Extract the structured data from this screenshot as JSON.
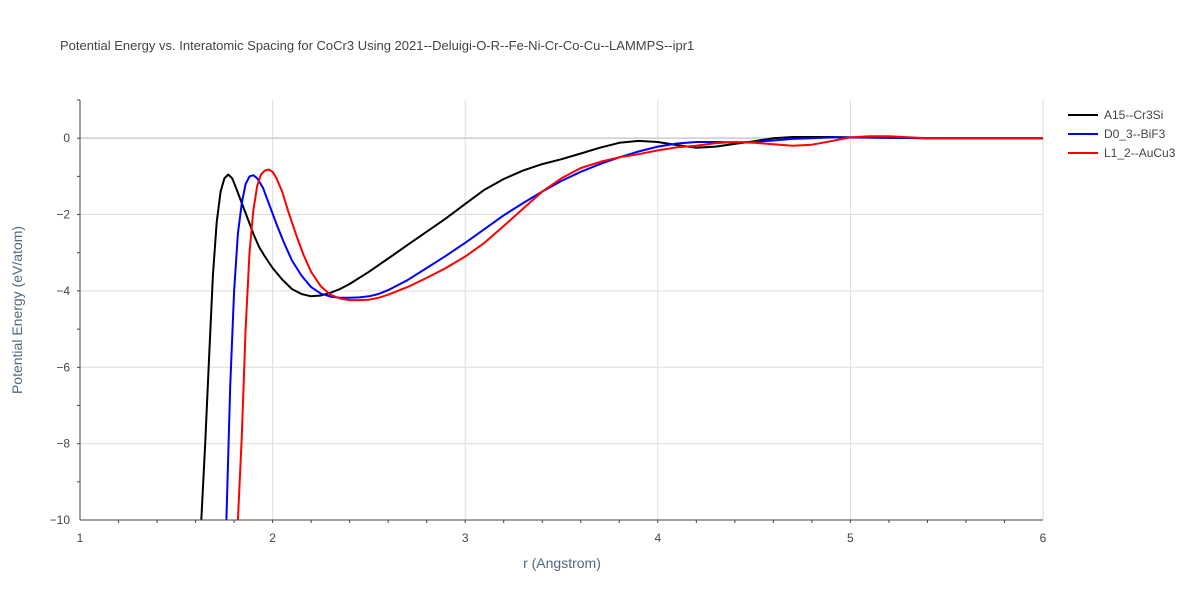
{
  "chart_data": {
    "type": "line",
    "title": "Potential Energy vs. Interatomic Spacing for CoCr3 Using 2021--Deluigi-O-R--Fe-Ni-Cr-Co-Cu--LAMMPS--ipr1",
    "xlabel": "r (Angstrom)",
    "ylabel": "Potential Energy (eV/atom)",
    "xlim": [
      1,
      6
    ],
    "ylim": [
      -10,
      1
    ],
    "xticks": [
      "1",
      "2",
      "3",
      "4",
      "5",
      "6"
    ],
    "yticks": [
      "0",
      "−2",
      "−4",
      "−6",
      "−8",
      "−10"
    ],
    "grid": true,
    "legend_position": "top-right",
    "series": [
      {
        "name": "A15--Cr3Si",
        "color": "#000000",
        "x": [
          1.63,
          1.65,
          1.67,
          1.69,
          1.71,
          1.73,
          1.75,
          1.77,
          1.79,
          1.81,
          1.84,
          1.87,
          1.9,
          1.93,
          1.96,
          2.0,
          2.05,
          2.1,
          2.15,
          2.2,
          2.25,
          2.3,
          2.35,
          2.4,
          2.5,
          2.6,
          2.7,
          2.8,
          2.9,
          3.0,
          3.1,
          3.2,
          3.3,
          3.4,
          3.5,
          3.6,
          3.7,
          3.8,
          3.9,
          4.0,
          4.1,
          4.2,
          4.3,
          4.4,
          4.5,
          4.6,
          4.7,
          4.8,
          4.9,
          5.0,
          5.2,
          5.4,
          5.6,
          5.8,
          6.0
        ],
        "y": [
          -10.0,
          -8.0,
          -5.8,
          -3.6,
          -2.2,
          -1.4,
          -1.05,
          -0.95,
          -1.05,
          -1.3,
          -1.7,
          -2.1,
          -2.5,
          -2.85,
          -3.1,
          -3.4,
          -3.7,
          -3.95,
          -4.08,
          -4.14,
          -4.12,
          -4.05,
          -3.95,
          -3.82,
          -3.5,
          -3.15,
          -2.8,
          -2.45,
          -2.1,
          -1.72,
          -1.35,
          -1.07,
          -0.85,
          -0.68,
          -0.55,
          -0.4,
          -0.25,
          -0.12,
          -0.07,
          -0.1,
          -0.18,
          -0.25,
          -0.22,
          -0.15,
          -0.08,
          0.0,
          0.03,
          0.03,
          0.03,
          0.02,
          0.01,
          0.0,
          0.0,
          0.0,
          0.0
        ]
      },
      {
        "name": "D0_3--BiF3",
        "color": "#0000ff",
        "x": [
          1.76,
          1.78,
          1.8,
          1.82,
          1.84,
          1.86,
          1.88,
          1.9,
          1.92,
          1.95,
          1.98,
          2.02,
          2.06,
          2.1,
          2.15,
          2.2,
          2.25,
          2.3,
          2.35,
          2.4,
          2.45,
          2.5,
          2.55,
          2.6,
          2.7,
          2.8,
          2.9,
          3.0,
          3.1,
          3.2,
          3.3,
          3.4,
          3.5,
          3.6,
          3.7,
          3.8,
          3.9,
          4.0,
          4.1,
          4.2,
          4.3,
          4.4,
          4.5,
          4.6,
          4.7,
          4.8,
          4.9,
          5.0,
          5.2,
          5.4,
          5.6,
          5.8,
          6.0
        ],
        "y": [
          -10.0,
          -6.5,
          -4.0,
          -2.5,
          -1.7,
          -1.2,
          -1.0,
          -0.97,
          -1.05,
          -1.3,
          -1.7,
          -2.25,
          -2.75,
          -3.2,
          -3.6,
          -3.9,
          -4.07,
          -4.15,
          -4.18,
          -4.18,
          -4.17,
          -4.14,
          -4.08,
          -3.98,
          -3.72,
          -3.4,
          -3.08,
          -2.74,
          -2.38,
          -2.02,
          -1.7,
          -1.4,
          -1.12,
          -0.88,
          -0.68,
          -0.5,
          -0.35,
          -0.22,
          -0.14,
          -0.1,
          -0.1,
          -0.11,
          -0.1,
          -0.06,
          -0.02,
          0.0,
          0.02,
          0.02,
          0.01,
          0.0,
          0.0,
          0.0,
          0.0
        ]
      },
      {
        "name": "L1_2--AuCu3",
        "color": "#ff0000",
        "x": [
          1.82,
          1.84,
          1.86,
          1.88,
          1.9,
          1.92,
          1.94,
          1.96,
          1.98,
          2.0,
          2.02,
          2.05,
          2.08,
          2.12,
          2.16,
          2.2,
          2.25,
          2.3,
          2.35,
          2.4,
          2.45,
          2.5,
          2.55,
          2.6,
          2.7,
          2.8,
          2.9,
          3.0,
          3.1,
          3.2,
          3.3,
          3.4,
          3.5,
          3.6,
          3.7,
          3.8,
          3.9,
          4.0,
          4.1,
          4.2,
          4.3,
          4.4,
          4.5,
          4.6,
          4.7,
          4.8,
          4.9,
          5.0,
          5.1,
          5.2,
          5.4,
          5.6,
          5.8,
          6.0
        ],
        "y": [
          -10.0,
          -7.8,
          -5.0,
          -3.0,
          -1.9,
          -1.25,
          -0.95,
          -0.85,
          -0.82,
          -0.88,
          -1.05,
          -1.4,
          -1.9,
          -2.5,
          -3.05,
          -3.5,
          -3.88,
          -4.1,
          -4.2,
          -4.24,
          -4.24,
          -4.23,
          -4.18,
          -4.1,
          -3.9,
          -3.66,
          -3.4,
          -3.1,
          -2.74,
          -2.3,
          -1.85,
          -1.4,
          -1.05,
          -0.78,
          -0.62,
          -0.5,
          -0.42,
          -0.32,
          -0.24,
          -0.2,
          -0.13,
          -0.1,
          -0.12,
          -0.16,
          -0.2,
          -0.17,
          -0.08,
          0.02,
          0.05,
          0.05,
          0.0,
          0.0,
          0.0,
          0.0
        ]
      }
    ]
  }
}
